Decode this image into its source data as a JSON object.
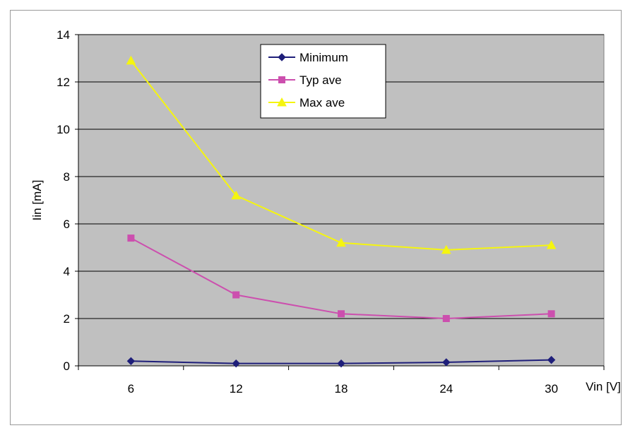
{
  "chart_data": {
    "type": "line",
    "categories": [
      "6",
      "12",
      "18",
      "24",
      "30"
    ],
    "series": [
      {
        "name": "Minimum",
        "values": [
          0.2,
          0.1,
          0.1,
          0.15,
          0.25
        ],
        "color": "#1f1f7a",
        "marker": "diamond"
      },
      {
        "name": "Typ ave",
        "values": [
          5.4,
          3.0,
          2.2,
          2.0,
          2.2
        ],
        "color": "#cc4fae",
        "marker": "square"
      },
      {
        "name": "Max ave",
        "values": [
          12.9,
          7.2,
          5.2,
          4.9,
          5.1
        ],
        "color": "#f5f50f",
        "marker": "triangle"
      }
    ],
    "xlabel": "Vin [V]",
    "ylabel": "Iin [mA]",
    "ylim": [
      0,
      14
    ],
    "yticks": [
      "0",
      "2",
      "4",
      "6",
      "8",
      "10",
      "12",
      "14"
    ],
    "grid": true,
    "legend_position": "top-center",
    "plot_background": "#c0c0c0",
    "gridline_color": "#000000"
  }
}
